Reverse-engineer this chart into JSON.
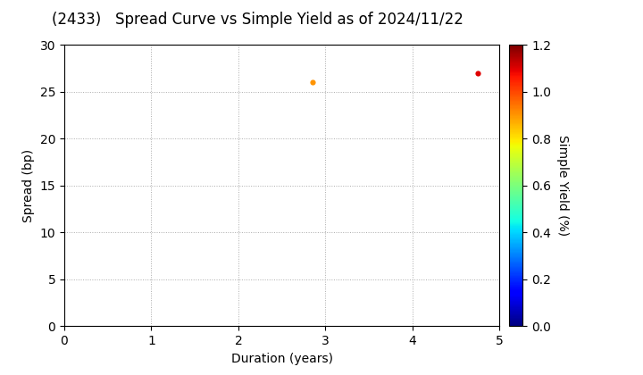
{
  "title": "(2433)   Spread Curve vs Simple Yield as of 2024/11/22",
  "xlabel": "Duration (years)",
  "ylabel": "Spread (bp)",
  "colorbar_label": "Simple Yield (%)",
  "xlim": [
    0,
    5
  ],
  "ylim": [
    0,
    30
  ],
  "xticks": [
    0,
    1,
    2,
    3,
    4,
    5
  ],
  "yticks": [
    0,
    5,
    10,
    15,
    20,
    25,
    30
  ],
  "points": [
    {
      "duration": 2.85,
      "spread": 26.0,
      "simple_yield": 0.9
    },
    {
      "duration": 4.75,
      "spread": 27.0,
      "simple_yield": 1.1
    }
  ],
  "cmap": "jet",
  "clim": [
    0.0,
    1.2
  ],
  "cticks": [
    0.0,
    0.2,
    0.4,
    0.6,
    0.8,
    1.0,
    1.2
  ],
  "marker_size": 20,
  "background_color": "#ffffff",
  "title_fontsize": 12,
  "axis_fontsize": 10,
  "tick_fontsize": 10
}
